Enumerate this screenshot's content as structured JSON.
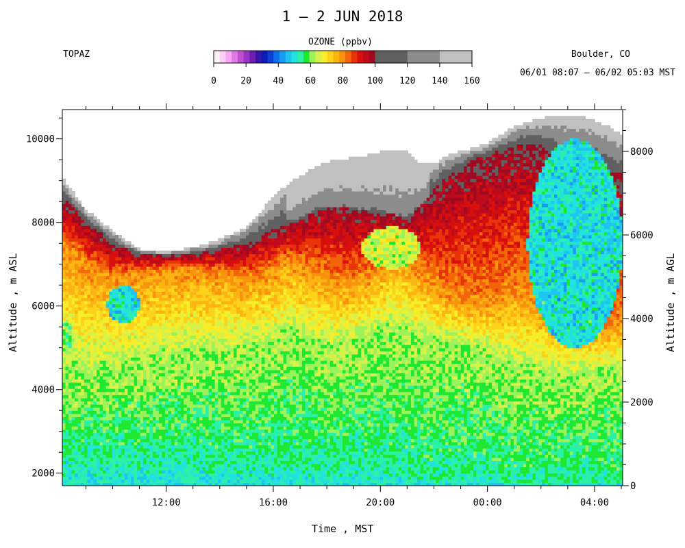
{
  "header": {
    "title": "1 – 2 JUN 2018",
    "station": "TOPAZ",
    "location": "Boulder, CO",
    "time_range": "06/01 08:07 – 06/02 05:03 MST"
  },
  "colorbar": {
    "title": "OZONE (ppbv)",
    "min": 0,
    "max": 160,
    "tick_labels": [
      "0",
      "20",
      "40",
      "60",
      "80",
      "100",
      "120",
      "140",
      "160"
    ],
    "colors": [
      [
        "#fff0fa",
        "#ffd0f6",
        "#f5a6f5",
        "#e07ae6",
        "#c050d0",
        "#9a33c6",
        "#6e1fb0",
        "#3a13a8",
        "#0d1bb5",
        "#0b40d8",
        "#0f6ef0",
        "#1a9bf4",
        "#1ec5ef",
        "#20e2e0",
        "#2bf0a8",
        "#1ee832",
        "#9cf25a",
        "#d6f24a",
        "#f6ee28",
        "#fcd21a",
        "#fbb412",
        "#f8930e",
        "#f3650b",
        "#e9340a",
        "#d8100d",
        "#bf0a1c",
        "#9e0a22"
      ],
      [
        "#606060",
        "#8c8c8c",
        "#c0c0c0"
      ]
    ]
  },
  "chart_data": {
    "type": "heatmap",
    "title": "1 – 2 JUN 2018",
    "quantity": "OZONE (ppbv)",
    "xlabel": "Time , MST",
    "ylabel_left": "Altitude , m ASL",
    "ylabel_right": "Altitude , m AGL",
    "x_range_hours": [
      8.12,
      29.05
    ],
    "x_tick_labels": [
      "12:00",
      "16:00",
      "20:00",
      "00:00",
      "04:00"
    ],
    "x_tick_hours": [
      12,
      16,
      20,
      24,
      28
    ],
    "y_range_asl": [
      1700,
      10700
    ],
    "y_ticks_left": [
      2000,
      4000,
      6000,
      8000,
      10000
    ],
    "y_ticks_right": [
      0,
      2000,
      4000,
      6000,
      8000
    ],
    "right_axis_offset_m": 1700,
    "boundaries": {
      "hours": [
        8.1,
        9.0,
        10.0,
        11.0,
        12.0,
        13.0,
        14.0,
        15.0,
        16.0,
        16.5,
        17.0,
        17.5,
        18.0,
        18.5,
        19.0,
        19.5,
        20.0,
        20.5,
        21.0,
        21.5,
        22.0,
        22.5,
        23.0,
        23.5,
        24.0,
        24.5,
        25.0,
        25.5,
        26.0,
        26.5,
        27.0,
        27.5,
        28.0,
        28.5,
        29.05
      ],
      "top_asl": [
        9100,
        8300,
        7800,
        7350,
        7300,
        7400,
        7600,
        7900,
        8600,
        8900,
        9100,
        9300,
        9450,
        9500,
        9550,
        9600,
        9700,
        9750,
        9700,
        9400,
        9400,
        9600,
        9700,
        9800,
        9900,
        10100,
        10300,
        10400,
        10500,
        10550,
        10550,
        10550,
        10450,
        10300,
        10100
      ],
      "above_100_asl": [
        8600,
        8050,
        7500,
        7250,
        7200,
        7250,
        7350,
        7500,
        7800,
        8000,
        8100,
        8300,
        8400,
        8400,
        8350,
        8300,
        8300,
        8200,
        8100,
        8400,
        8800,
        9100,
        9300,
        9500,
        9600,
        9700,
        9800,
        9900,
        9800,
        9600,
        9400,
        9300,
        9300,
        9200,
        9100
      ],
      "above_80_asl": [
        7500,
        7000,
        6700,
        6800,
        6900,
        6900,
        6800,
        6700,
        6900,
        7100,
        7000,
        6800,
        6700,
        6600,
        6600,
        6700,
        7000,
        7300,
        7100,
        6800,
        6500,
        6300,
        6200,
        6100,
        6100,
        6200,
        6400,
        6300,
        6000,
        5700,
        5600,
        5500,
        5500,
        5500,
        5600
      ],
      "above_60_asl": [
        4300,
        4200,
        4300,
        4500,
        4600,
        4700,
        4700,
        4800,
        5000,
        5200,
        5200,
        5000,
        4900,
        4900,
        5000,
        5100,
        5200,
        5300,
        5200,
        5100,
        5000,
        5000,
        5000,
        4900,
        4800,
        4600,
        4400,
        4300,
        4300,
        4200,
        4200,
        4300,
        4300,
        4400,
        4400
      ],
      "above_50_asl": [
        2600,
        2500,
        2400,
        2400,
        2400,
        2400,
        2300,
        2300,
        2200,
        2200,
        2200,
        2200,
        2200,
        2200,
        2200,
        2200,
        2200,
        2100,
        2100,
        2000,
        1900,
        1900,
        1900,
        1900,
        1900,
        1800,
        1800,
        1800,
        1800,
        1800,
        1800,
        1800,
        1800,
        1800,
        1800
      ]
    },
    "features": [
      {
        "label": "blue-green pocket",
        "ozone_ppbv": 45,
        "hours": [
          9.8,
          11.0
        ],
        "asl": [
          5600,
          6500
        ]
      },
      {
        "label": "green pocket",
        "ozone_ppbv": 55,
        "hours": [
          8.1,
          8.5
        ],
        "asl": [
          4800,
          5700
        ]
      },
      {
        "label": "green pocket",
        "ozone_ppbv": 60,
        "hours": [
          19.3,
          21.5
        ],
        "asl": [
          6900,
          7900
        ]
      },
      {
        "label": "blue-green layer",
        "ozone_ppbv": 45,
        "hours": [
          25.5,
          29.05
        ],
        "asl": [
          5000,
          10000
        ]
      },
      {
        "label": "teal surface layer",
        "ozone_ppbv": 52,
        "hours": [
          26.0,
          29.05
        ],
        "asl": [
          1700,
          1850
        ]
      }
    ]
  }
}
